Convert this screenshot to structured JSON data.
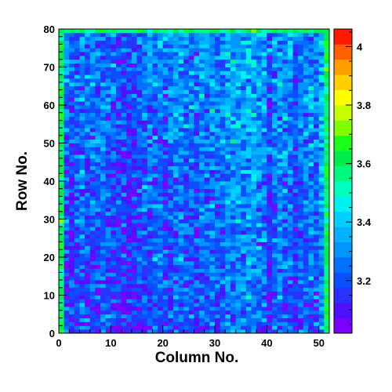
{
  "chart_data": {
    "type": "heatmap",
    "title": "",
    "xlabel": "Column No.",
    "ylabel": "Row No.",
    "x_range": [
      0,
      52
    ],
    "y_range": [
      0,
      80
    ],
    "n_columns": 52,
    "n_rows": 80,
    "x_ticks": [
      "0",
      "10",
      "20",
      "30",
      "40",
      "50"
    ],
    "y_ticks": [
      "0",
      "10",
      "20",
      "30",
      "40",
      "50",
      "60",
      "70",
      "80"
    ],
    "z_range": [
      3.02,
      4.06
    ],
    "colorbar_ticks": [
      "3.2",
      "3.4",
      "3.6",
      "3.8",
      "4"
    ],
    "palette_bands": 20,
    "grid": false,
    "column_means": [
      3.3,
      3.22,
      3.18,
      3.22,
      3.25,
      3.21,
      3.23,
      3.2,
      3.24,
      3.22,
      3.2,
      3.18,
      3.17,
      3.16,
      3.16,
      3.2,
      3.23,
      3.25,
      3.24,
      3.25,
      3.22,
      3.25,
      3.27,
      3.26,
      3.23,
      3.24,
      3.22,
      3.27,
      3.25,
      3.28,
      3.24,
      3.27,
      3.3,
      3.31,
      3.32,
      3.3,
      3.33,
      3.33,
      3.29,
      3.27,
      3.14,
      3.25,
      3.3,
      3.25,
      3.28,
      3.19,
      3.24,
      3.26,
      3.28,
      3.25,
      3.35,
      3.52
    ],
    "row_trend": {
      "start": 3.2,
      "end": 3.3
    },
    "edge_cells_value": 3.6,
    "spread": 0.09
  },
  "colors": {
    "palette": [
      "#7a00ff",
      "#5010ff",
      "#2a32ff",
      "#0a50ff",
      "#0070ff",
      "#0096ff",
      "#00b2ff",
      "#00d0ff",
      "#00f2f0",
      "#00ffbc",
      "#00f880",
      "#00ec48",
      "#1aff1a",
      "#80ff00",
      "#c8ff00",
      "#ffff00",
      "#ffd000",
      "#ffa000",
      "#ff6000",
      "#ff1a00"
    ]
  }
}
